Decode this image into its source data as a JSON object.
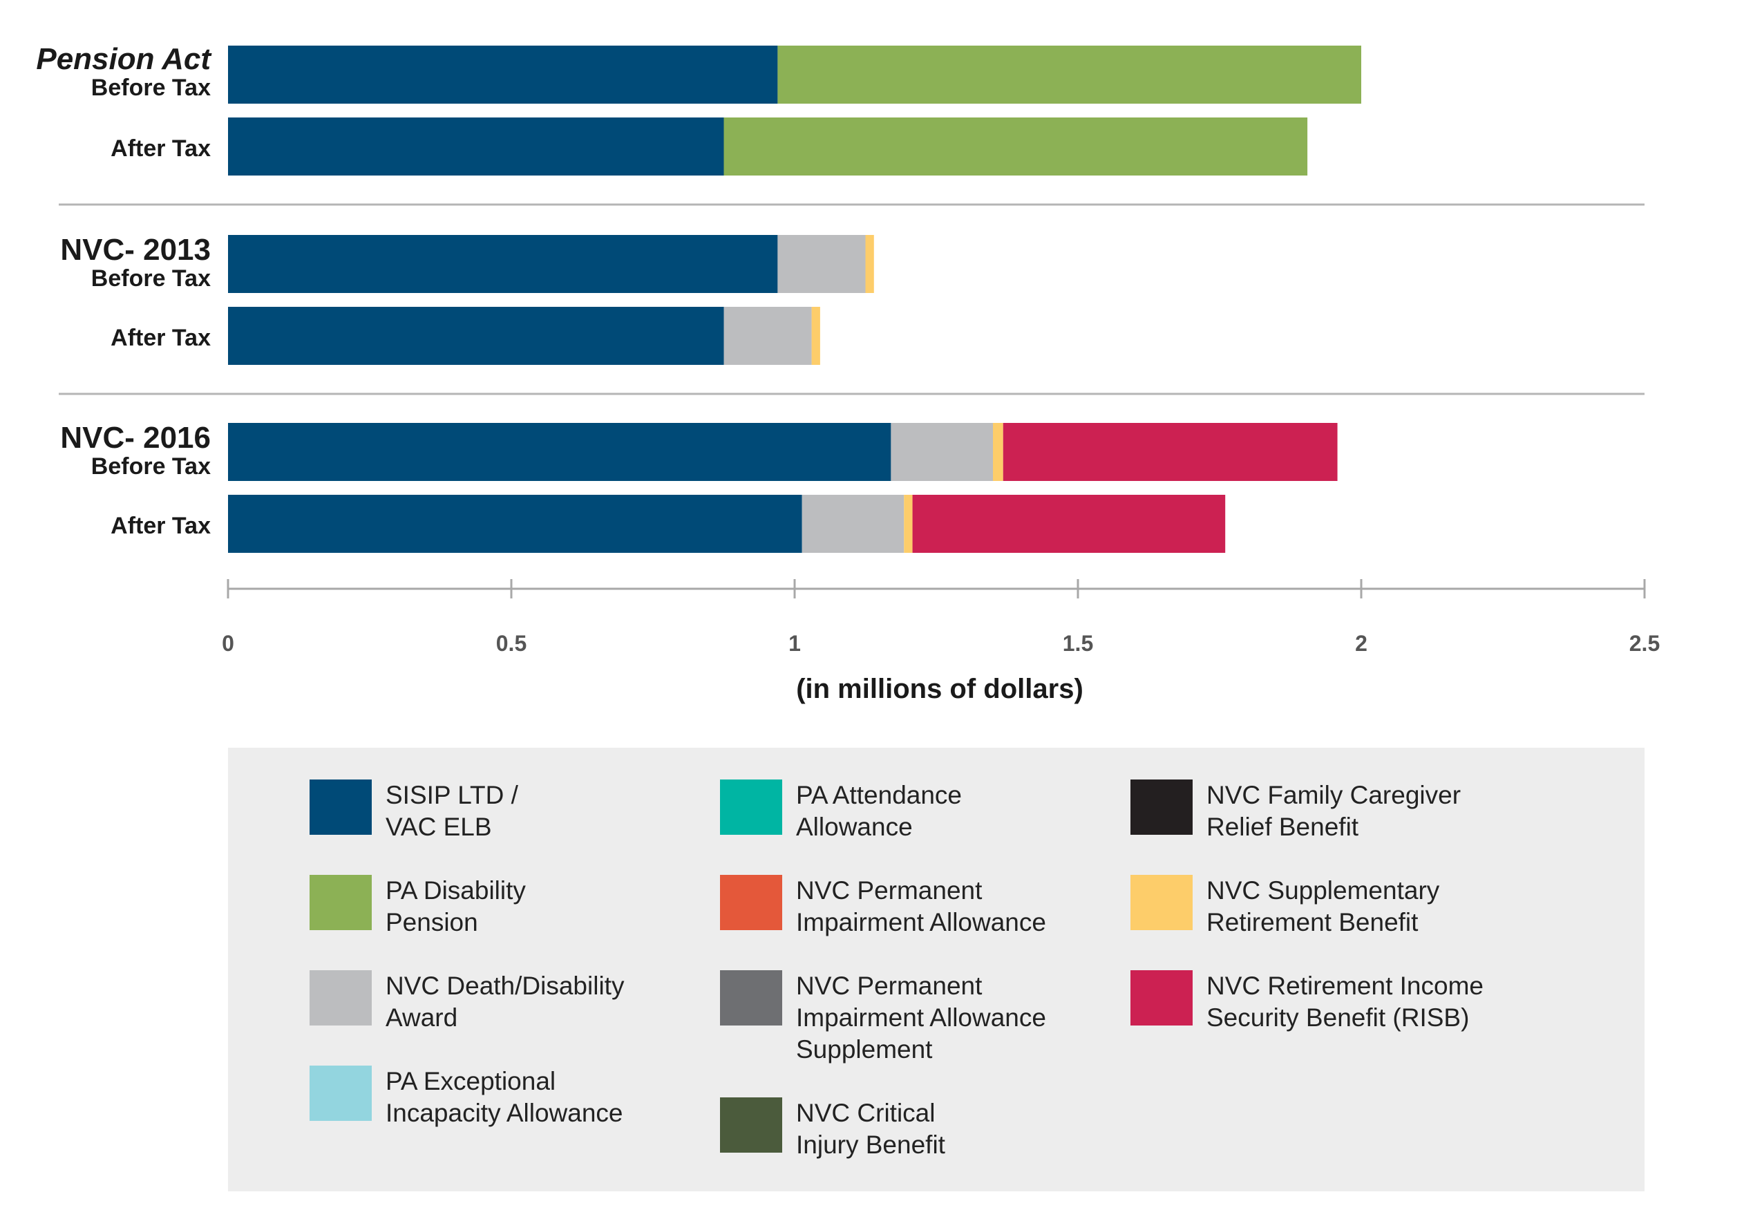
{
  "chart_data": {
    "type": "bar",
    "orientation": "horizontal",
    "stacked": true,
    "xlabel": "(in millions of dollars)",
    "xlim": [
      0,
      2.5
    ],
    "xticks": [
      "0",
      "0.5",
      "1",
      "1.5",
      "2",
      "2.5"
    ],
    "groups": [
      {
        "title": "Pension Act",
        "rows": [
          {
            "label": "Before Tax",
            "segments": [
              {
                "series": "SISIP LTD / VAC ELB",
                "value": 0.97
              },
              {
                "series": "PA Disability Pension",
                "value": 1.03
              }
            ]
          },
          {
            "label": "After Tax",
            "segments": [
              {
                "series": "SISIP LTD / VAC ELB",
                "value": 0.875
              },
              {
                "series": "PA Disability Pension",
                "value": 1.03
              }
            ]
          }
        ]
      },
      {
        "title": "NVC- 2013",
        "rows": [
          {
            "label": "Before Tax",
            "segments": [
              {
                "series": "SISIP LTD / VAC ELB",
                "value": 0.97
              },
              {
                "series": "NVC Death/Disability Award",
                "value": 0.155
              },
              {
                "series": "NVC Supplementary Retirement Benefit",
                "value": 0.015
              }
            ]
          },
          {
            "label": "After Tax",
            "segments": [
              {
                "series": "SISIP LTD / VAC ELB",
                "value": 0.875
              },
              {
                "series": "NVC Death/Disability Award",
                "value": 0.155
              },
              {
                "series": "NVC Supplementary Retirement Benefit",
                "value": 0.015
              }
            ]
          }
        ]
      },
      {
        "title": "NVC- 2016",
        "rows": [
          {
            "label": "Before Tax",
            "segments": [
              {
                "series": "SISIP LTD / VAC ELB",
                "value": 1.17
              },
              {
                "series": "NVC Death/Disability Award",
                "value": 0.18
              },
              {
                "series": "NVC Supplementary Retirement Benefit",
                "value": 0.018
              },
              {
                "series": "NVC Retirement Income Security Benefit (RISB)",
                "value": 0.59
              }
            ]
          },
          {
            "label": "After Tax",
            "segments": [
              {
                "series": "SISIP LTD / VAC ELB",
                "value": 1.013
              },
              {
                "series": "NVC Death/Disability Award",
                "value": 0.18
              },
              {
                "series": "NVC Supplementary Retirement Benefit",
                "value": 0.015
              },
              {
                "series": "NVC Retirement Income Security Benefit (RISB)",
                "value": 0.552
              }
            ]
          }
        ]
      }
    ],
    "legend": [
      {
        "label": "SISIP LTD /\nVAC ELB",
        "color": "#004a77"
      },
      {
        "label": "PA Disability\nPension",
        "color": "#8cb155"
      },
      {
        "label": "NVC Death/Disability\nAward",
        "color": "#bcbdbf"
      },
      {
        "label": "PA Exceptional\nIncapacity Allowance",
        "color": "#93d5df"
      },
      {
        "label": "PA Attendance\nAllowance",
        "color": "#00b5a3"
      },
      {
        "label": "NVC Permanent\nImpairment Allowance",
        "color": "#e4583a"
      },
      {
        "label": "NVC Permanent\nImpairment Allowance\nSupplement",
        "color": "#6e6f72"
      },
      {
        "label": "NVC Critical\nInjury Benefit",
        "color": "#4b5b3c"
      },
      {
        "label": "NVC Family Caregiver\nRelief Benefit",
        "color": "#231f20"
      },
      {
        "label": "NVC Supplementary\nRetirement Benefit",
        "color": "#fdcd6a"
      },
      {
        "label": "NVC Retirement Income\nSecurity Benefit (RISB)",
        "color": "#cc2152"
      }
    ],
    "colors": {
      "SISIP LTD / VAC ELB": "#004a77",
      "PA Disability Pension": "#8cb155",
      "NVC Death/Disability Award": "#bcbdbf",
      "NVC Supplementary Retirement Benefit": "#fdcd6a",
      "NVC Retirement Income Security Benefit (RISB)": "#cc2152"
    }
  }
}
